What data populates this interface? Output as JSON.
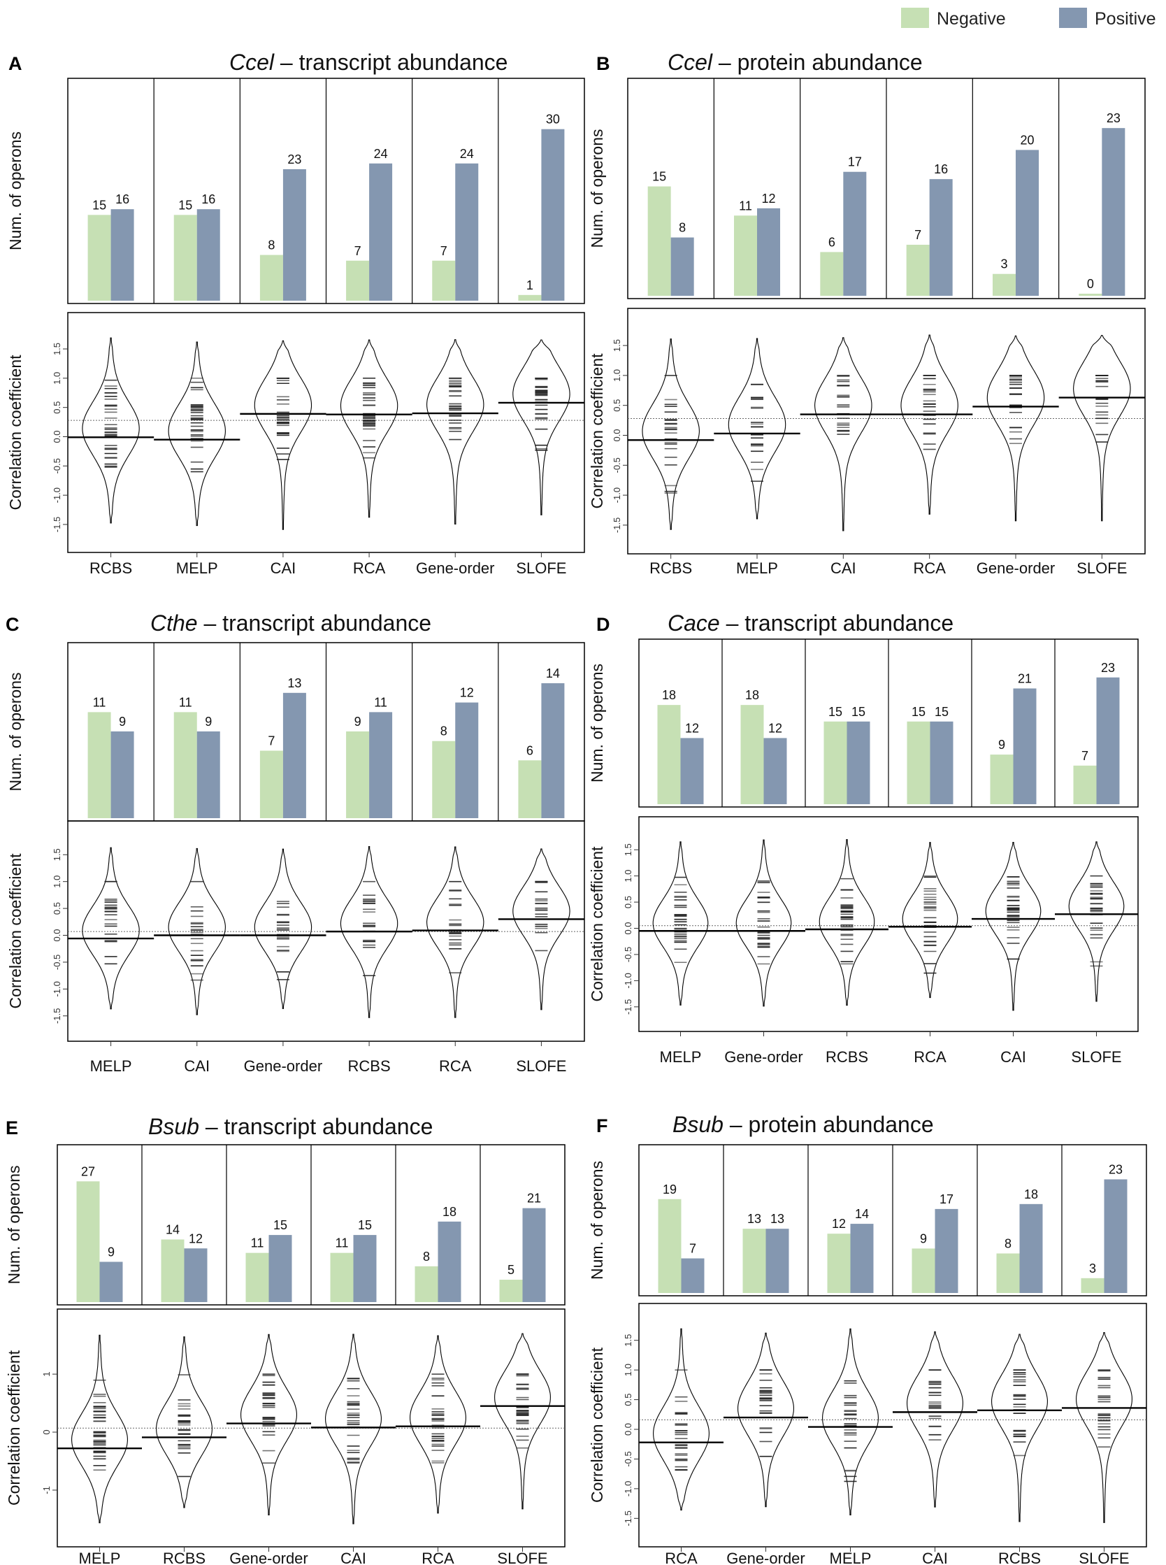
{
  "legend": [
    {
      "label": "Negative",
      "color": "#c6e0b4"
    },
    {
      "label": "Positive",
      "color": "#8497b0"
    }
  ],
  "bar_ylabel": "Num. of operons",
  "violin_ylabel": "Correlation coefficient",
  "chart_data": [
    {
      "type": "bar+violin",
      "letter": "A",
      "organism": "Ccel",
      "title_rest": " – transcript abundance",
      "categories": [
        "RCBS",
        "MELP",
        "CAI",
        "RCA",
        "Gene-order",
        "SLOFE"
      ],
      "negative": [
        15,
        15,
        8,
        7,
        7,
        1
      ],
      "positive": [
        16,
        16,
        23,
        24,
        24,
        30
      ],
      "median": [
        -0.01,
        -0.05,
        0.39,
        0.38,
        0.4,
        0.58
      ],
      "reference": 0.28,
      "yticks": [
        "-1.5",
        "-1.0",
        "-0.5",
        "0.0",
        "0.5",
        "1.0",
        "1.5"
      ]
    },
    {
      "type": "bar+violin",
      "letter": "B",
      "organism": "Ccel",
      "title_rest": " – protein abundance",
      "categories": [
        "RCBS",
        "MELP",
        "CAI",
        "RCA",
        "Gene-order",
        "SLOFE"
      ],
      "negative": [
        15,
        11,
        6,
        7,
        3,
        0
      ],
      "positive": [
        8,
        12,
        17,
        16,
        20,
        23
      ],
      "median": [
        -0.08,
        0.03,
        0.35,
        0.35,
        0.48,
        0.63
      ],
      "reference": 0.28,
      "yticks": [
        "-1.5",
        "-1.0",
        "-0.5",
        "0.0",
        "0.5",
        "1.0",
        "1.5"
      ]
    },
    {
      "type": "bar+violin",
      "letter": "C",
      "organism": "Cthe",
      "title_rest": " – transcript abundance",
      "categories": [
        "MELP",
        "CAI",
        "Gene-order",
        "RCBS",
        "RCA",
        "SLOFE"
      ],
      "negative": [
        11,
        11,
        7,
        9,
        8,
        6
      ],
      "positive": [
        9,
        9,
        13,
        11,
        12,
        14
      ],
      "median": [
        -0.06,
        0.0,
        0.0,
        0.07,
        0.09,
        0.3
      ],
      "reference": 0.07,
      "yticks": [
        "-1.5",
        "-1.0",
        "-0.5",
        "0.0",
        "0.5",
        "1.0",
        "1.5"
      ]
    },
    {
      "type": "bar+violin",
      "letter": "D",
      "organism": "Cace",
      "title_rest": " – transcript abundance",
      "categories": [
        "MELP",
        "Gene-order",
        "RCBS",
        "RCA",
        "CAI",
        "SLOFE"
      ],
      "negative": [
        18,
        18,
        15,
        15,
        9,
        7
      ],
      "positive": [
        12,
        12,
        15,
        15,
        21,
        23
      ],
      "median": [
        -0.05,
        -0.05,
        -0.02,
        0.03,
        0.18,
        0.27
      ],
      "reference": 0.05,
      "yticks": [
        "-1.5",
        "-1.0",
        "-0.5",
        "0.0",
        "0.5",
        "1.0",
        "1.5"
      ]
    },
    {
      "type": "bar+violin",
      "letter": "E",
      "organism": "Bsub",
      "title_rest": " – transcript abundance",
      "categories": [
        "MELP",
        "RCBS",
        "Gene-order",
        "CAI",
        "RCA",
        "SLOFE"
      ],
      "negative": [
        27,
        14,
        11,
        11,
        8,
        5
      ],
      "positive": [
        9,
        12,
        15,
        15,
        18,
        21
      ],
      "median": [
        -0.28,
        -0.09,
        0.15,
        0.08,
        0.1,
        0.45
      ],
      "reference": 0.07,
      "yticks": [
        "-1",
        "0",
        "1"
      ]
    },
    {
      "type": "bar+violin",
      "letter": "F",
      "organism": "Bsub",
      "title_rest": " – protein abundance",
      "categories": [
        "RCA",
        "Gene-order",
        "MELP",
        "CAI",
        "RCBS",
        "SLOFE"
      ],
      "negative": [
        19,
        13,
        12,
        9,
        8,
        3
      ],
      "positive": [
        7,
        13,
        14,
        17,
        18,
        23
      ],
      "median": [
        -0.22,
        0.2,
        0.04,
        0.29,
        0.32,
        0.36
      ],
      "reference": 0.16,
      "yticks": [
        "-1.5",
        "-1.0",
        "-0.5",
        "0.0",
        "0.5",
        "1.0",
        "1.5"
      ]
    }
  ]
}
